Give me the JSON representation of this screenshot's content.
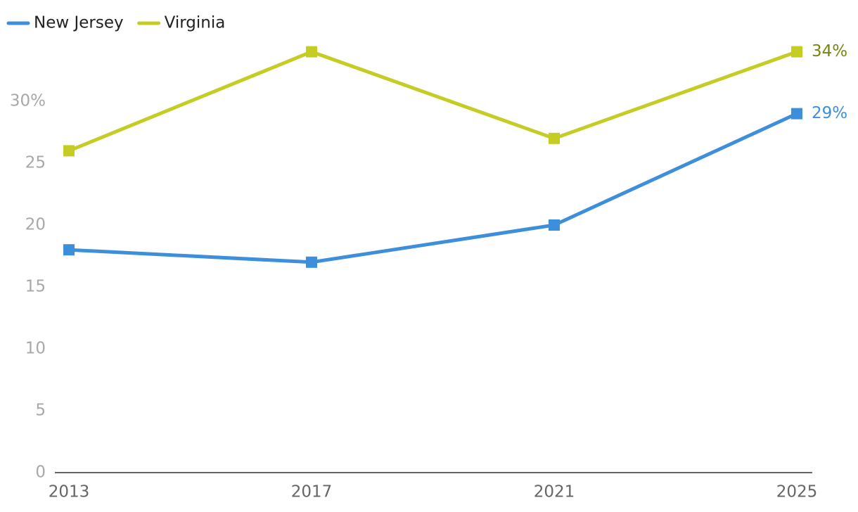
{
  "chart_data": {
    "type": "line",
    "categories": [
      "2013",
      "2017",
      "2021",
      "2025"
    ],
    "series": [
      {
        "name": "New Jersey",
        "color": "#3d8fdc",
        "label_color": "#3d8fdc",
        "values": [
          18,
          17,
          20,
          29
        ],
        "value_labels": [
          null,
          null,
          null,
          "29%"
        ]
      },
      {
        "name": "Virginia",
        "color": "#c5cc24",
        "label_color": "#7a8510",
        "values": [
          26,
          34,
          27,
          34
        ],
        "value_labels": [
          null,
          null,
          null,
          "34%"
        ]
      }
    ],
    "ylim": [
      0,
      35
    ],
    "yticks": [
      0,
      5,
      10,
      15,
      20,
      25,
      {
        "value": 30,
        "label": "30%"
      }
    ],
    "grid": false,
    "legend": "top-left"
  }
}
